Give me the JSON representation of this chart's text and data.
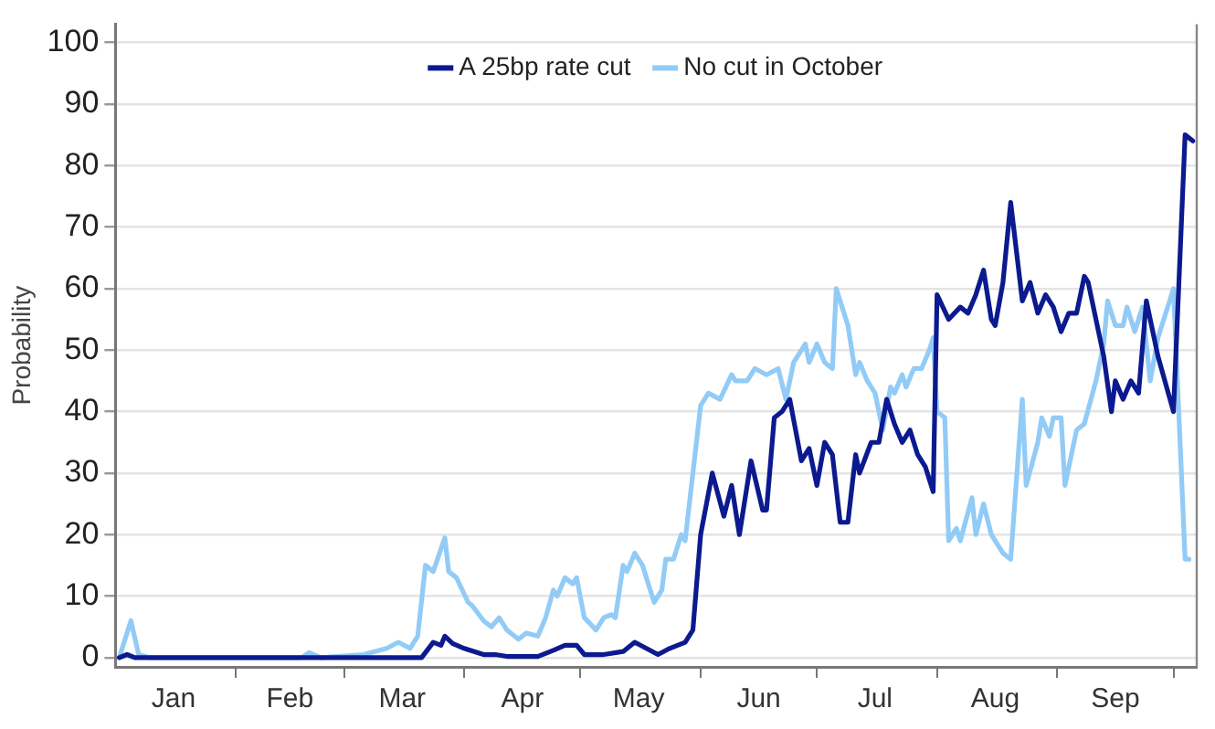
{
  "chart_data": {
    "type": "line",
    "ylabel": "Probability",
    "legend": "top",
    "grid": "y",
    "marker": "none",
    "line_style": "solid",
    "xlim": [
      "--01-01",
      "--10-07"
    ],
    "xticks": [
      {
        "value": "--01-16",
        "label": "Jan"
      },
      {
        "value": "--02-01",
        "label": null
      },
      {
        "value": "--02-15",
        "label": "Feb"
      },
      {
        "value": "--03-01",
        "label": null
      },
      {
        "value": "--03-16",
        "label": "Mar"
      },
      {
        "value": "--04-01",
        "label": null
      },
      {
        "value": "--04-16",
        "label": "Apr"
      },
      {
        "value": "--05-01",
        "label": null
      },
      {
        "value": "--05-16",
        "label": "May"
      },
      {
        "value": "--06-01",
        "label": null
      },
      {
        "value": "--06-16",
        "label": "Jun"
      },
      {
        "value": "--07-01",
        "label": null
      },
      {
        "value": "--07-16",
        "label": "Jul"
      },
      {
        "value": "--08-01",
        "label": null
      },
      {
        "value": "--08-16",
        "label": "Aug"
      },
      {
        "value": "--09-01",
        "label": null
      },
      {
        "value": "--09-16",
        "label": "Sep"
      },
      {
        "value": "--10-01",
        "label": null
      }
    ],
    "ylim": [
      -1.5,
      103
    ],
    "yticks": [
      0,
      10,
      20,
      30,
      40,
      50,
      60,
      70,
      80,
      90,
      100
    ],
    "series": [
      {
        "name": "A 25bp rate cut",
        "color": "#0b1a8e",
        "x": [
          "--01-02",
          "--01-04",
          "--01-06",
          "--03-21",
          "--03-24",
          "--03-26",
          "--03-27",
          "--03-29",
          "--04-01",
          "--04-06",
          "--04-09",
          "--04-12",
          "--04-20",
          "--04-24",
          "--04-27",
          "--04-30",
          "--05-02",
          "--05-07",
          "--05-12",
          "--05-15",
          "--05-21",
          "--05-24",
          "--05-28",
          "--05-30",
          "--06-01",
          "--06-04",
          "--06-07",
          "--06-09",
          "--06-11",
          "--06-14",
          "--06-17",
          "--06-18",
          "--06-20",
          "--06-22",
          "--06-24",
          "--06-27",
          "--06-29",
          "--07-01",
          "--07-03",
          "--07-05",
          "--07-07",
          "--07-09",
          "--07-11",
          "--07-12",
          "--07-15",
          "--07-17",
          "--07-19",
          "--07-21",
          "--07-23",
          "--07-25",
          "--07-27",
          "--07-29",
          "--07-31",
          "--08-01",
          "--08-04",
          "--08-07",
          "--08-09",
          "--08-11",
          "--08-13",
          "--08-15",
          "--08-16",
          "--08-18",
          "--08-20",
          "--08-23",
          "--08-25",
          "--08-27",
          "--08-29",
          "--08-31",
          "--09-02",
          "--09-04",
          "--09-06",
          "--09-08",
          "--09-09",
          "--09-13",
          "--09-15",
          "--09-16",
          "--09-18",
          "--09-20",
          "--09-22",
          "--09-24",
          "--09-27",
          "--10-01",
          "--10-04",
          "--10-06"
        ],
        "values": [
          0,
          0.5,
          0,
          0,
          2.5,
          2,
          3.5,
          2.3,
          1.5,
          0.5,
          0.5,
          0.2,
          0.2,
          1.2,
          2,
          2,
          0.5,
          0.5,
          1,
          2.5,
          0.5,
          1.5,
          2.5,
          4.5,
          20,
          30,
          23,
          28,
          20,
          32,
          24,
          24,
          39,
          40,
          42,
          32,
          34,
          28,
          35,
          33,
          22,
          22,
          33,
          30,
          35,
          35,
          42,
          38,
          35,
          37,
          33,
          31,
          27,
          59,
          55,
          57,
          56,
          59,
          63,
          55,
          54,
          61,
          74,
          58,
          61,
          56,
          59,
          57,
          53,
          56,
          56,
          62,
          61,
          49,
          40,
          45,
          42,
          45,
          43,
          58,
          49,
          40,
          85,
          84
        ]
      },
      {
        "name": "No cut in October",
        "color": "#92cbf6",
        "x": [
          "--01-02",
          "--01-05",
          "--01-07",
          "--01-10",
          "--02-18",
          "--02-20",
          "--02-23",
          "--03-06",
          "--03-12",
          "--03-15",
          "--03-18",
          "--03-20",
          "--03-22",
          "--03-24",
          "--03-27",
          "--03-28",
          "--03-30",
          "--04-02",
          "--04-03",
          "--04-06",
          "--04-08",
          "--04-10",
          "--04-12",
          "--04-15",
          "--04-17",
          "--04-20",
          "--04-22",
          "--04-24",
          "--04-25",
          "--04-27",
          "--04-29",
          "--04-30",
          "--05-02",
          "--05-05",
          "--05-07",
          "--05-09",
          "--05-10",
          "--05-12",
          "--05-13",
          "--05-15",
          "--05-17",
          "--05-20",
          "--05-22",
          "--05-23",
          "--05-25",
          "--05-27",
          "--05-28",
          "--06-01",
          "--06-03",
          "--06-06",
          "--06-09",
          "--06-10",
          "--06-13",
          "--06-15",
          "--06-18",
          "--06-21",
          "--06-23",
          "--06-25",
          "--06-28",
          "--06-29",
          "--07-01",
          "--07-03",
          "--07-05",
          "--07-06",
          "--07-08",
          "--07-09",
          "--07-11",
          "--07-12",
          "--07-14",
          "--07-16",
          "--07-18",
          "--07-20",
          "--07-21",
          "--07-23",
          "--07-24",
          "--07-26",
          "--07-28",
          "--07-30",
          "--07-31",
          "--08-01",
          "--08-03",
          "--08-04",
          "--08-06",
          "--08-07",
          "--08-10",
          "--08-11",
          "--08-13",
          "--08-15",
          "--08-18",
          "--08-20",
          "--08-23",
          "--08-24",
          "--08-27",
          "--08-28",
          "--08-30",
          "--08-31",
          "--09-02",
          "--09-03",
          "--09-06",
          "--09-08",
          "--09-11",
          "--09-13",
          "--09-14",
          "--09-16",
          "--09-18",
          "--09-19",
          "--09-21",
          "--09-23",
          "--09-25",
          "--09-27",
          "--10-01",
          "--10-04",
          "--10-05"
        ],
        "values": [
          0,
          6,
          0.5,
          0,
          0,
          0.8,
          0,
          0.5,
          1.5,
          2.5,
          1.5,
          3.5,
          15,
          14,
          19.5,
          14,
          13,
          9,
          8.5,
          6,
          5,
          6.5,
          4.5,
          3,
          4,
          3.5,
          6.5,
          11,
          10,
          13,
          12,
          13,
          6.5,
          4.5,
          6.5,
          7,
          6.5,
          15,
          14,
          17,
          15,
          9,
          11,
          16,
          16,
          20,
          19,
          41,
          43,
          42,
          46,
          45,
          45,
          47,
          46,
          47,
          42,
          48,
          51,
          48,
          51,
          48,
          47,
          60,
          56,
          54,
          46,
          48,
          45,
          43,
          37,
          44,
          43,
          46,
          44,
          47,
          47,
          50,
          52,
          40,
          39,
          19,
          21,
          19,
          26,
          20,
          25,
          20,
          17,
          16,
          42,
          28,
          35,
          39,
          36,
          39,
          39,
          28,
          37,
          38,
          45,
          51,
          58,
          54,
          54,
          57,
          53,
          57,
          45,
          52,
          60,
          16,
          16
        ]
      }
    ]
  }
}
